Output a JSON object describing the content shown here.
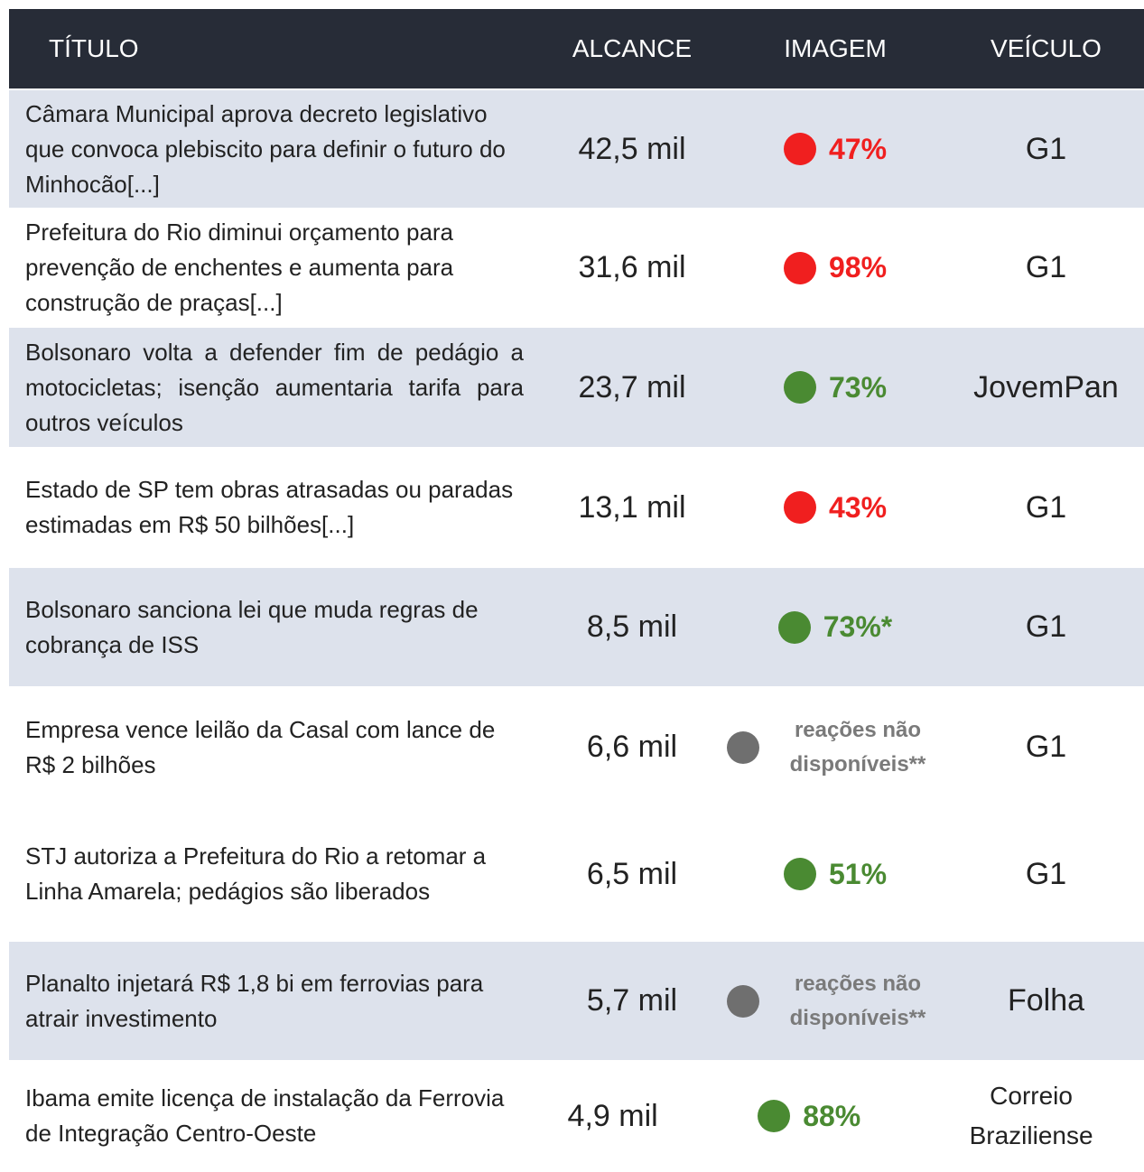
{
  "table": {
    "header": [
      "TÍTULO",
      "ALCANCE",
      "IMAGEM",
      "VEÍCULO"
    ],
    "rows": [
      {
        "title": "Câmara Municipal aprova decreto legislativo que convoca plebiscito para definir o futuro do Minhocão[...]",
        "reach": "42,5 mil",
        "image": {
          "text": "47%",
          "color": "#f01f1f"
        },
        "vehicle": "G1"
      },
      {
        "title": "Prefeitura do Rio diminui orçamento para prevenção de enchentes e aumenta para construção de praças[...]",
        "reach": "31,6 mil",
        "image": {
          "text": "98%",
          "color": "#f01f1f"
        },
        "vehicle": "G1"
      },
      {
        "title": "Bolsonaro volta a defender fim de pedágio a motocicletas; isenção aumentaria tarifa para outros veículos",
        "reach": "23,7 mil",
        "image": {
          "text": "73%",
          "color": "#4a8a32"
        },
        "vehicle": "JovemPan"
      },
      {
        "title": "Estado de SP tem obras atrasadas ou paradas estimadas em R$ 50 bilhões[...]",
        "reach": "13,1 mil",
        "image": {
          "text": "43%",
          "color": "#f01f1f"
        },
        "vehicle": "G1"
      },
      {
        "title": "Bolsonaro sanciona lei que muda regras de cobrança de ISS",
        "reach": "8,5 mil",
        "image": {
          "text": "73%*",
          "color": "#4a8a32"
        },
        "vehicle": "G1"
      },
      {
        "title": "Empresa vence leilão da Casal com lance de R$ 2 bilhões",
        "reach": "6,6 mil",
        "image": {
          "text": "reações não disponíveis**",
          "color": "#6f6f6f"
        },
        "vehicle": "G1"
      },
      {
        "title": "STJ autoriza a Prefeitura do Rio a retomar a Linha Amarela; pedágios são liberados",
        "reach": "6,5 mil",
        "image": {
          "text": "51%",
          "color": "#4a8a32"
        },
        "vehicle": "G1"
      },
      {
        "title": "Planalto injetará R$ 1,8 bi em ferrovias para atrair investimento",
        "reach": "5,7 mil",
        "image": {
          "text": "reações não disponíveis**",
          "color": "#6f6f6f"
        },
        "vehicle": "Folha"
      },
      {
        "title": "Ibama emite licença de instalação da Ferrovia de Integração Centro-Oeste",
        "reach": "4,9 mil",
        "image": {
          "text": "88%",
          "color": "#4a8a32"
        },
        "vehicle": "Correio Braziliense"
      }
    ]
  }
}
